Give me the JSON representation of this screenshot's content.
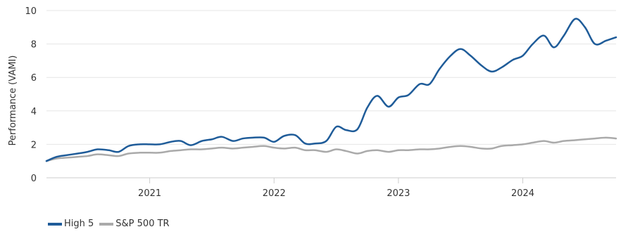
{
  "chart_data": {
    "type": "line",
    "title": "",
    "xlabel": "",
    "ylabel": "Performance (VAMI)",
    "ylim": [
      0,
      10
    ],
    "yticks": [
      "0",
      "2",
      "4",
      "6",
      "8",
      "10"
    ],
    "xticks": [
      "2021",
      "2022",
      "2023",
      "2024"
    ],
    "xlim": [
      2020.17,
      2024.75
    ],
    "grid": true,
    "legend_position": "bottom-left",
    "series": [
      {
        "name": "High 5",
        "color": "#1f5c99",
        "x": [
          2020.17,
          2020.25,
          2020.33,
          2020.42,
          2020.5,
          2020.58,
          2020.67,
          2020.75,
          2020.83,
          2020.92,
          2021.0,
          2021.08,
          2021.17,
          2021.25,
          2021.33,
          2021.42,
          2021.5,
          2021.58,
          2021.67,
          2021.75,
          2021.83,
          2021.92,
          2022.0,
          2022.08,
          2022.17,
          2022.25,
          2022.33,
          2022.42,
          2022.5,
          2022.58,
          2022.67,
          2022.75,
          2022.83,
          2022.92,
          2023.0,
          2023.08,
          2023.17,
          2023.25,
          2023.33,
          2023.42,
          2023.5,
          2023.58,
          2023.67,
          2023.75,
          2023.83,
          2023.92,
          2024.0,
          2024.08,
          2024.17,
          2024.25,
          2024.33,
          2024.42,
          2024.5,
          2024.58,
          2024.67,
          2024.75
        ],
        "values": [
          1.0,
          1.25,
          1.35,
          1.45,
          1.55,
          1.7,
          1.65,
          1.55,
          1.9,
          2.0,
          2.0,
          2.0,
          2.15,
          2.2,
          1.95,
          2.2,
          2.3,
          2.45,
          2.2,
          2.35,
          2.4,
          2.4,
          2.15,
          2.5,
          2.55,
          2.05,
          2.05,
          2.2,
          3.05,
          2.85,
          2.9,
          4.2,
          4.9,
          4.25,
          4.8,
          4.95,
          5.6,
          5.6,
          6.5,
          7.3,
          7.7,
          7.3,
          6.7,
          6.35,
          6.6,
          7.05,
          7.3,
          8.0,
          8.5,
          7.8,
          8.5,
          9.5,
          9.0,
          8.0,
          8.2,
          8.4
        ]
      },
      {
        "name": "S&P 500 TR",
        "color": "#aaaaaa",
        "x": [
          2020.17,
          2020.25,
          2020.33,
          2020.42,
          2020.5,
          2020.58,
          2020.67,
          2020.75,
          2020.83,
          2020.92,
          2021.0,
          2021.08,
          2021.17,
          2021.25,
          2021.33,
          2021.42,
          2021.5,
          2021.58,
          2021.67,
          2021.75,
          2021.83,
          2021.92,
          2022.0,
          2022.08,
          2022.17,
          2022.25,
          2022.33,
          2022.42,
          2022.5,
          2022.58,
          2022.67,
          2022.75,
          2022.83,
          2022.92,
          2023.0,
          2023.08,
          2023.17,
          2023.25,
          2023.33,
          2023.42,
          2023.5,
          2023.58,
          2023.67,
          2023.75,
          2023.83,
          2023.92,
          2024.0,
          2024.08,
          2024.17,
          2024.25,
          2024.33,
          2024.42,
          2024.5,
          2024.58,
          2024.67,
          2024.75
        ],
        "values": [
          1.0,
          1.15,
          1.2,
          1.25,
          1.3,
          1.4,
          1.35,
          1.3,
          1.45,
          1.5,
          1.5,
          1.5,
          1.6,
          1.65,
          1.7,
          1.7,
          1.75,
          1.8,
          1.75,
          1.8,
          1.85,
          1.9,
          1.8,
          1.75,
          1.8,
          1.65,
          1.65,
          1.55,
          1.7,
          1.6,
          1.45,
          1.6,
          1.65,
          1.55,
          1.65,
          1.65,
          1.7,
          1.7,
          1.75,
          1.85,
          1.9,
          1.85,
          1.75,
          1.75,
          1.9,
          1.95,
          2.0,
          2.1,
          2.2,
          2.1,
          2.2,
          2.25,
          2.3,
          2.35,
          2.4,
          2.35
        ]
      }
    ]
  }
}
